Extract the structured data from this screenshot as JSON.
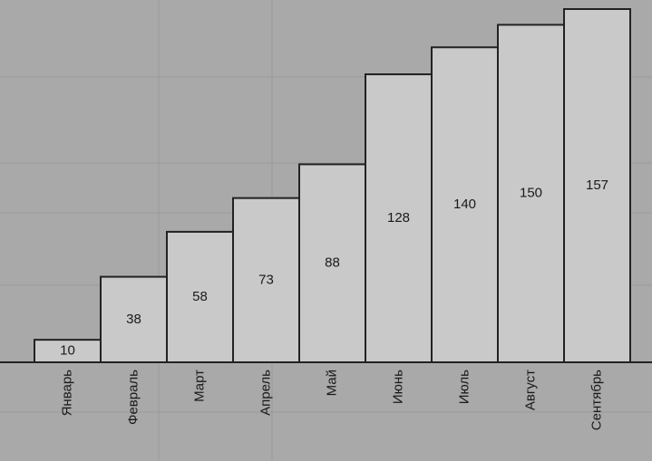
{
  "chart_data": {
    "type": "bar",
    "categories": [
      "Январь",
      "Февраль",
      "Март",
      "Апрель",
      "Май",
      "Июнь",
      "Июль",
      "Август",
      "Сентябрь"
    ],
    "values": [
      10,
      38,
      58,
      73,
      88,
      128,
      140,
      150,
      157
    ],
    "color": "#c9c9c9"
  }
}
